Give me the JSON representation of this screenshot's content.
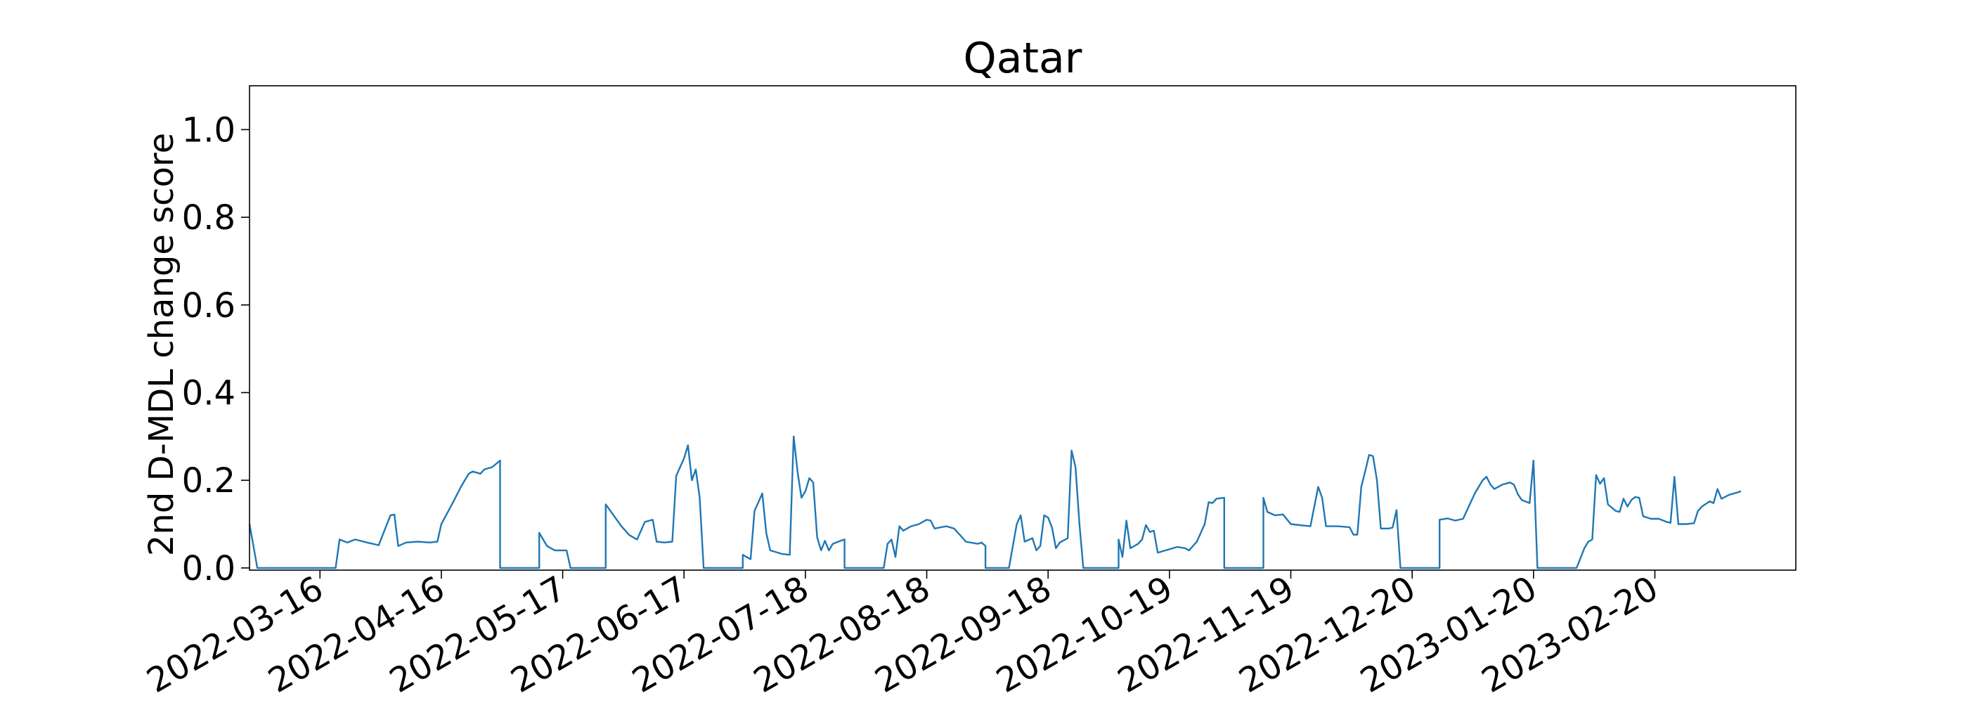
{
  "chart_data": {
    "type": "line",
    "title": "Qatar",
    "xlabel": "",
    "ylabel": "2nd D-MDL change score",
    "ylim": [
      -0.005,
      1.1
    ],
    "xlim": [
      "2022-02-26",
      "2023-03-28"
    ],
    "yticks": [
      "0.0",
      "0.2",
      "0.4",
      "0.6",
      "0.8",
      "1.0"
    ],
    "xticks": [
      "2022-03-16",
      "2022-04-16",
      "2022-05-17",
      "2022-06-17",
      "2022-07-18",
      "2022-08-18",
      "2022-09-18",
      "2022-10-19",
      "2022-11-19",
      "2022-12-20",
      "2023-01-20",
      "2023-02-20"
    ],
    "grid": false,
    "series": [
      {
        "color": "#1f77b4",
        "points": [
          [
            "2022-02-26",
            0.1
          ],
          [
            "2022-02-27",
            0.05
          ],
          [
            "2022-02-28",
            0.0
          ],
          [
            "2022-03-05",
            0.0
          ],
          [
            "2022-03-10",
            0.0
          ],
          [
            "2022-03-15",
            0.0
          ],
          [
            "2022-03-19",
            0.0
          ],
          [
            "2022-03-20",
            0.0
          ],
          [
            "2022-03-21",
            0.065
          ],
          [
            "2022-03-23",
            0.058
          ],
          [
            "2022-03-25",
            0.065
          ],
          [
            "2022-03-28",
            0.058
          ],
          [
            "2022-03-31",
            0.052
          ],
          [
            "2022-04-03",
            0.12
          ],
          [
            "2022-04-04",
            0.122
          ],
          [
            "2022-04-05",
            0.05
          ],
          [
            "2022-04-07",
            0.058
          ],
          [
            "2022-04-10",
            0.06
          ],
          [
            "2022-04-13",
            0.058
          ],
          [
            "2022-04-15",
            0.06
          ],
          [
            "2022-04-16",
            0.1
          ],
          [
            "2022-04-19",
            0.15
          ],
          [
            "2022-04-21",
            0.185
          ],
          [
            "2022-04-23",
            0.215
          ],
          [
            "2022-04-24",
            0.22
          ],
          [
            "2022-04-26",
            0.215
          ],
          [
            "2022-04-27",
            0.225
          ],
          [
            "2022-04-29",
            0.23
          ],
          [
            "2022-05-01",
            0.245
          ],
          [
            "2022-05-01",
            0.0
          ],
          [
            "2022-05-05",
            0.0
          ],
          [
            "2022-05-11",
            0.0
          ],
          [
            "2022-05-11",
            0.08
          ],
          [
            "2022-05-13",
            0.05
          ],
          [
            "2022-05-15",
            0.04
          ],
          [
            "2022-05-18",
            0.04
          ],
          [
            "2022-05-19",
            0.0
          ],
          [
            "2022-05-25",
            0.0
          ],
          [
            "2022-05-28",
            0.0
          ],
          [
            "2022-05-28",
            0.145
          ],
          [
            "2022-05-30",
            0.12
          ],
          [
            "2022-06-01",
            0.095
          ],
          [
            "2022-06-03",
            0.075
          ],
          [
            "2022-06-05",
            0.065
          ],
          [
            "2022-06-07",
            0.105
          ],
          [
            "2022-06-09",
            0.11
          ],
          [
            "2022-06-10",
            0.06
          ],
          [
            "2022-06-12",
            0.058
          ],
          [
            "2022-06-14",
            0.06
          ],
          [
            "2022-06-15",
            0.21
          ],
          [
            "2022-06-17",
            0.25
          ],
          [
            "2022-06-18",
            0.28
          ],
          [
            "2022-06-19",
            0.2
          ],
          [
            "2022-06-20",
            0.225
          ],
          [
            "2022-06-21",
            0.16
          ],
          [
            "2022-06-22",
            0.0
          ],
          [
            "2022-06-27",
            0.0
          ],
          [
            "2022-07-02",
            0.0
          ],
          [
            "2022-07-02",
            0.03
          ],
          [
            "2022-07-04",
            0.02
          ],
          [
            "2022-07-05",
            0.13
          ],
          [
            "2022-07-07",
            0.17
          ],
          [
            "2022-07-08",
            0.08
          ],
          [
            "2022-07-09",
            0.04
          ],
          [
            "2022-07-12",
            0.032
          ],
          [
            "2022-07-14",
            0.03
          ],
          [
            "2022-07-15",
            0.3
          ],
          [
            "2022-07-16",
            0.22
          ],
          [
            "2022-07-17",
            0.16
          ],
          [
            "2022-07-18",
            0.175
          ],
          [
            "2022-07-19",
            0.205
          ],
          [
            "2022-07-20",
            0.195
          ],
          [
            "2022-07-21",
            0.07
          ],
          [
            "2022-07-22",
            0.04
          ],
          [
            "2022-07-23",
            0.062
          ],
          [
            "2022-07-24",
            0.04
          ],
          [
            "2022-07-25",
            0.055
          ],
          [
            "2022-07-27",
            0.062
          ],
          [
            "2022-07-28",
            0.065
          ],
          [
            "2022-07-28",
            0.0
          ],
          [
            "2022-08-02",
            0.0
          ],
          [
            "2022-08-07",
            0.0
          ],
          [
            "2022-08-08",
            0.055
          ],
          [
            "2022-08-09",
            0.065
          ],
          [
            "2022-08-10",
            0.025
          ],
          [
            "2022-08-11",
            0.095
          ],
          [
            "2022-08-12",
            0.085
          ],
          [
            "2022-08-14",
            0.095
          ],
          [
            "2022-08-16",
            0.1
          ],
          [
            "2022-08-18",
            0.11
          ],
          [
            "2022-08-19",
            0.108
          ],
          [
            "2022-08-20",
            0.09
          ],
          [
            "2022-08-23",
            0.095
          ],
          [
            "2022-08-25",
            0.09
          ],
          [
            "2022-08-27",
            0.07
          ],
          [
            "2022-08-28",
            0.06
          ],
          [
            "2022-08-31",
            0.055
          ],
          [
            "2022-09-01",
            0.058
          ],
          [
            "2022-09-02",
            0.05
          ],
          [
            "2022-09-02",
            0.0
          ],
          [
            "2022-09-06",
            0.0
          ],
          [
            "2022-09-08",
            0.0
          ],
          [
            "2022-09-10",
            0.1
          ],
          [
            "2022-09-11",
            0.12
          ],
          [
            "2022-09-12",
            0.06
          ],
          [
            "2022-09-14",
            0.068
          ],
          [
            "2022-09-15",
            0.04
          ],
          [
            "2022-09-16",
            0.05
          ],
          [
            "2022-09-17",
            0.12
          ],
          [
            "2022-09-18",
            0.115
          ],
          [
            "2022-09-19",
            0.092
          ],
          [
            "2022-09-20",
            0.045
          ],
          [
            "2022-09-21",
            0.058
          ],
          [
            "2022-09-23",
            0.068
          ],
          [
            "2022-09-24",
            0.268
          ],
          [
            "2022-09-25",
            0.23
          ],
          [
            "2022-09-26",
            0.1
          ],
          [
            "2022-09-27",
            0.0
          ],
          [
            "2022-10-02",
            0.0
          ],
          [
            "2022-10-06",
            0.0
          ],
          [
            "2022-10-06",
            0.065
          ],
          [
            "2022-10-07",
            0.025
          ],
          [
            "2022-10-08",
            0.108
          ],
          [
            "2022-10-09",
            0.045
          ],
          [
            "2022-10-11",
            0.055
          ],
          [
            "2022-10-12",
            0.065
          ],
          [
            "2022-10-13",
            0.098
          ],
          [
            "2022-10-14",
            0.082
          ],
          [
            "2022-10-15",
            0.085
          ],
          [
            "2022-10-16",
            0.035
          ],
          [
            "2022-10-18",
            0.04
          ],
          [
            "2022-10-21",
            0.048
          ],
          [
            "2022-10-23",
            0.045
          ],
          [
            "2022-10-24",
            0.04
          ],
          [
            "2022-10-26",
            0.06
          ],
          [
            "2022-10-28",
            0.1
          ],
          [
            "2022-10-29",
            0.15
          ],
          [
            "2022-10-30",
            0.148
          ],
          [
            "2022-10-31",
            0.158
          ],
          [
            "2022-11-02",
            0.16
          ],
          [
            "2022-11-02",
            0.0
          ],
          [
            "2022-11-07",
            0.0
          ],
          [
            "2022-11-12",
            0.0
          ],
          [
            "2022-11-12",
            0.16
          ],
          [
            "2022-11-13",
            0.128
          ],
          [
            "2022-11-15",
            0.12
          ],
          [
            "2022-11-17",
            0.122
          ],
          [
            "2022-11-19",
            0.1
          ],
          [
            "2022-11-22",
            0.097
          ],
          [
            "2022-11-24",
            0.095
          ],
          [
            "2022-11-26",
            0.185
          ],
          [
            "2022-11-27",
            0.16
          ],
          [
            "2022-11-28",
            0.095
          ],
          [
            "2022-12-01",
            0.095
          ],
          [
            "2022-12-04",
            0.093
          ],
          [
            "2022-12-05",
            0.076
          ],
          [
            "2022-12-06",
            0.076
          ],
          [
            "2022-12-07",
            0.185
          ],
          [
            "2022-12-08",
            0.22
          ],
          [
            "2022-12-09",
            0.258
          ],
          [
            "2022-12-10",
            0.255
          ],
          [
            "2022-12-11",
            0.2
          ],
          [
            "2022-12-12",
            0.09
          ],
          [
            "2022-12-14",
            0.09
          ],
          [
            "2022-12-15",
            0.092
          ],
          [
            "2022-12-16",
            0.132
          ],
          [
            "2022-12-17",
            0.0
          ],
          [
            "2022-12-22",
            0.0
          ],
          [
            "2022-12-27",
            0.0
          ],
          [
            "2022-12-27",
            0.11
          ],
          [
            "2022-12-29",
            0.113
          ],
          [
            "2022-12-31",
            0.108
          ],
          [
            "2023-01-02",
            0.112
          ],
          [
            "2023-01-05",
            0.17
          ],
          [
            "2023-01-07",
            0.2
          ],
          [
            "2023-01-08",
            0.208
          ],
          [
            "2023-01-09",
            0.19
          ],
          [
            "2023-01-10",
            0.18
          ],
          [
            "2023-01-12",
            0.19
          ],
          [
            "2023-01-14",
            0.195
          ],
          [
            "2023-01-15",
            0.19
          ],
          [
            "2023-01-16",
            0.168
          ],
          [
            "2023-01-17",
            0.155
          ],
          [
            "2023-01-19",
            0.148
          ],
          [
            "2023-01-20",
            0.245
          ],
          [
            "2023-01-21",
            0.0
          ],
          [
            "2023-01-26",
            0.0
          ],
          [
            "2023-01-31",
            0.0
          ],
          [
            "2023-02-02",
            0.045
          ],
          [
            "2023-02-03",
            0.06
          ],
          [
            "2023-02-04",
            0.065
          ],
          [
            "2023-02-05",
            0.212
          ],
          [
            "2023-02-06",
            0.192
          ],
          [
            "2023-02-07",
            0.205
          ],
          [
            "2023-02-08",
            0.145
          ],
          [
            "2023-02-10",
            0.13
          ],
          [
            "2023-02-11",
            0.128
          ],
          [
            "2023-02-12",
            0.158
          ],
          [
            "2023-02-13",
            0.14
          ],
          [
            "2023-02-14",
            0.155
          ],
          [
            "2023-02-15",
            0.162
          ],
          [
            "2023-02-16",
            0.16
          ],
          [
            "2023-02-17",
            0.118
          ],
          [
            "2023-02-19",
            0.112
          ],
          [
            "2023-02-21",
            0.112
          ],
          [
            "2023-02-23",
            0.105
          ],
          [
            "2023-02-24",
            0.103
          ],
          [
            "2023-02-25",
            0.208
          ],
          [
            "2023-02-26",
            0.1
          ],
          [
            "2023-02-28",
            0.1
          ],
          [
            "2023-03-02",
            0.102
          ],
          [
            "2023-03-03",
            0.13
          ],
          [
            "2023-03-04",
            0.14
          ],
          [
            "2023-03-06",
            0.152
          ],
          [
            "2023-03-07",
            0.148
          ],
          [
            "2023-03-08",
            0.18
          ],
          [
            "2023-03-09",
            0.158
          ],
          [
            "2023-03-11",
            0.167
          ],
          [
            "2023-03-13",
            0.172
          ],
          [
            "2023-03-14",
            0.175
          ]
        ]
      }
    ]
  }
}
